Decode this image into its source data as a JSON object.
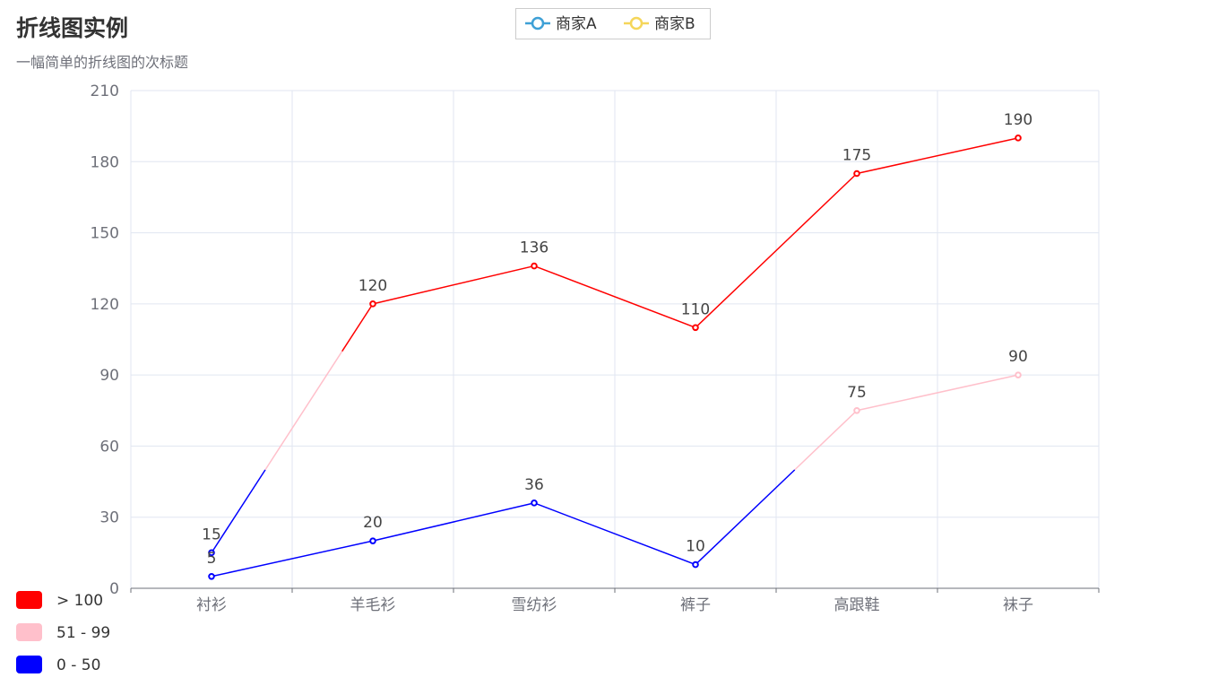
{
  "chart_data": {
    "type": "line",
    "title": "折线图实例",
    "subtitle": "一幅简单的折线图的次标题",
    "categories": [
      "衬衫",
      "羊毛衫",
      "雪纺衫",
      "裤子",
      "高跟鞋",
      "袜子"
    ],
    "series": [
      {
        "name": "商家A",
        "values": [
          15,
          120,
          136,
          110,
          175,
          190
        ],
        "legend_color": "#3ea0d6"
      },
      {
        "name": "商家B",
        "values": [
          5,
          20,
          36,
          10,
          75,
          90
        ],
        "legend_color": "#f5d65a"
      }
    ],
    "yaxis": {
      "min": 0,
      "max": 210,
      "interval": 30,
      "ticks": [
        "0",
        "30",
        "60",
        "90",
        "120",
        "150",
        "180",
        "210"
      ]
    },
    "grid": true,
    "legend_position": "top-center",
    "visual_map": {
      "position": "bottom-left",
      "pieces": [
        {
          "label": "> 100",
          "min": 100,
          "max": 210,
          "color": "#ff0000"
        },
        {
          "label": "51 - 99",
          "min": 50,
          "max": 100,
          "color": "#ffc0cb"
        },
        {
          "label": "0 - 50",
          "min": 0,
          "max": 50,
          "color": "#0000ff"
        }
      ]
    }
  }
}
